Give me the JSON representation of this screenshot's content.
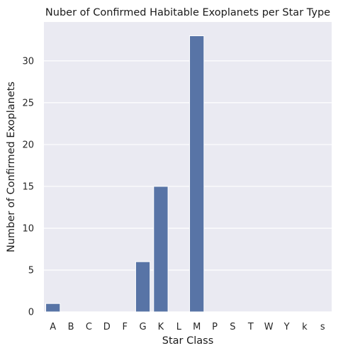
{
  "chart_data": {
    "type": "bar",
    "title": "Nuber of Confirmed Habitable Exoplanets per Star Type",
    "xlabel": "Star Class",
    "ylabel": "Number of Confirmed Exoplanets",
    "categories": [
      "A",
      "B",
      "C",
      "D",
      "F",
      "G",
      "K",
      "L",
      "M",
      "P",
      "S",
      "T",
      "W",
      "Y",
      "k",
      "s"
    ],
    "values": [
      1,
      0,
      0,
      0,
      0,
      6,
      15,
      0,
      33,
      0,
      0,
      0,
      0,
      0,
      0,
      0
    ],
    "ylim": [
      0,
      34.65
    ],
    "yticks": [
      0,
      5,
      10,
      15,
      20,
      25,
      30
    ],
    "grid": "horizontal",
    "colors": {
      "bar": "#5874a6",
      "background": "#eaeaf2",
      "grid": "#ffffff"
    }
  }
}
